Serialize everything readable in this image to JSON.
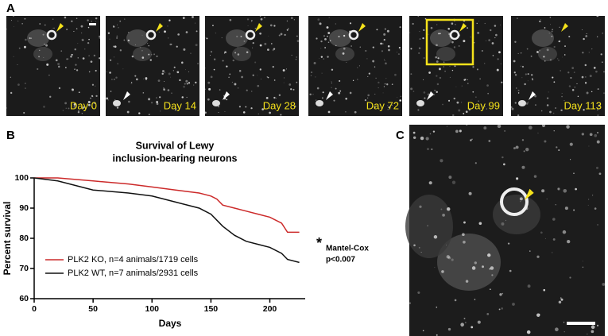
{
  "panels": {
    "a": {
      "label": "A",
      "day_labels": [
        "Day 0",
        "Day 14",
        "Day 28",
        "Day 72",
        "Day 99",
        "Day 113"
      ]
    },
    "b": {
      "label": "B"
    },
    "c": {
      "label": "C"
    }
  },
  "chart_data": {
    "type": "line",
    "title": [
      "Survival of Lewy",
      "inclusion-bearing neurons"
    ],
    "x_label": "Days",
    "y_label": "Percent survival",
    "x": [
      0,
      20,
      50,
      80,
      100,
      120,
      140,
      150,
      155,
      160,
      170,
      180,
      190,
      200,
      210,
      215,
      225
    ],
    "series": [
      {
        "name": "PLK2 KO, n=4 animals/1719 cells",
        "color": "#cc2a2a",
        "values": [
          100,
          100,
          99,
          98,
          97,
          96,
          95,
          94,
          93,
          91,
          90,
          89,
          88,
          87,
          85,
          82,
          82
        ]
      },
      {
        "name": "PLK2 WT, n=7 animals/2931 cells",
        "color": "#111111",
        "values": [
          100,
          99,
          96,
          95,
          94,
          92,
          90,
          88,
          86,
          84,
          81,
          79,
          78,
          77,
          75,
          73,
          72
        ]
      }
    ],
    "xlim": [
      0,
      230
    ],
    "xticks": [
      0,
      50,
      100,
      150,
      200
    ],
    "ylim": [
      60,
      100
    ],
    "yticks": [
      60,
      70,
      80,
      90,
      100
    ],
    "annotations": [
      "*",
      "Mantel-Cox",
      "p<0.007"
    ]
  }
}
